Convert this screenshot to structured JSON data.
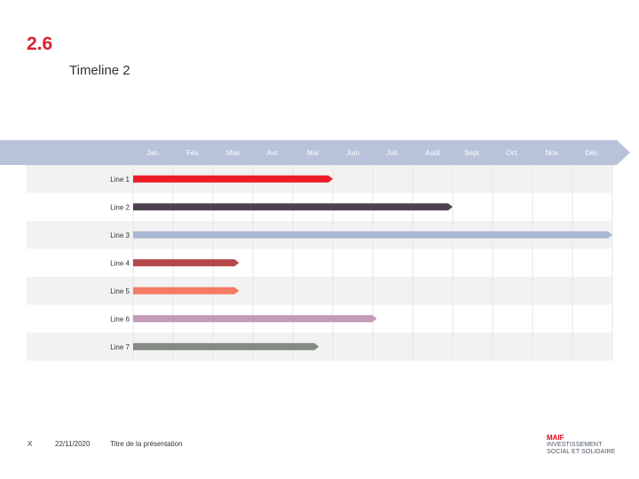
{
  "header": {
    "section_number": "2.6",
    "title": "Timeline 2"
  },
  "chart_data": {
    "type": "gantt",
    "months": [
      "Jan.",
      "Fév.",
      "Mas",
      "Avr.",
      "Mai",
      "Juin",
      "Juil.",
      "Août",
      "Sept.",
      "Oct.",
      "Nov.",
      "Déc."
    ],
    "colors": {
      "header_band": "#b8c2d9",
      "row_shade": "#f2f2f2",
      "grid": "#e6e6e6"
    },
    "lines": [
      {
        "label": "Line 1",
        "end": 5,
        "color": "#ed1c24"
      },
      {
        "label": "Line 2",
        "end": 8,
        "color": "#4d4150"
      },
      {
        "label": "Line 3",
        "end": 12,
        "color": "#a9b7d1"
      },
      {
        "label": "Line 4",
        "end": 2.65,
        "color": "#b4484b"
      },
      {
        "label": "Line 5",
        "end": 2.65,
        "color": "#f47b63"
      },
      {
        "label": "Line 6",
        "end": 6.1,
        "color": "#c39bb7"
      },
      {
        "label": "Line 7",
        "end": 4.65,
        "color": "#858a84"
      }
    ]
  },
  "footer": {
    "slide_marker": "X",
    "date": "22/11/2020",
    "presentation_title": "Titre de la présentation"
  },
  "logo": {
    "brand": "MAIF",
    "line1": "INVESTISSEMENT",
    "line2": "SOCIAL ET SOLIDAIRE"
  }
}
